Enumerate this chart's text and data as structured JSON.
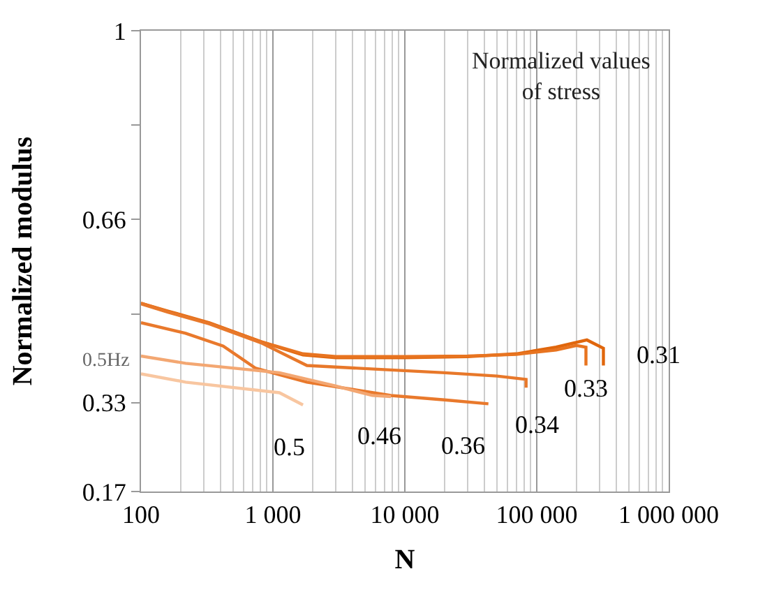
{
  "chart_data": {
    "type": "line",
    "xlabel": "N",
    "ylabel": "Normalized modulus",
    "log": "x",
    "grid": "x",
    "legend": false,
    "marker": "none",
    "line_style": "solid",
    "xlim": [
      100,
      1000000
    ],
    "ylim": [
      0.17,
      1
    ],
    "xticks": [
      {
        "value": 100,
        "label": "100"
      },
      {
        "value": 1000,
        "label": "1 000"
      },
      {
        "value": 10000,
        "label": "10 000"
      },
      {
        "value": 100000,
        "label": "100 000"
      },
      {
        "value": 1000000,
        "label": "1 000 000"
      }
    ],
    "yticks": [
      0.17,
      0.33,
      {
        "value": 0.49,
        "label": null
      },
      0.66,
      {
        "value": 0.83,
        "label": null
      },
      1
    ],
    "annotations": [
      "Normalized values\nof stress",
      {
        "text": "0.5Hz",
        "x": 100,
        "y": 0.404
      }
    ],
    "series": [
      {
        "name": "0.31",
        "color": "#e0660c",
        "x": [
          100,
          160,
          330,
          810,
          1690,
          3000,
          10000,
          30000,
          70000,
          140000,
          240000,
          320000,
          320000
        ],
        "values": [
          0.509,
          0.495,
          0.474,
          0.44,
          0.416,
          0.411,
          0.411,
          0.413,
          0.418,
          0.43,
          0.443,
          0.428,
          0.397
        ]
      },
      {
        "name": "0.33",
        "color": "#e87420",
        "x": [
          100,
          160,
          330,
          810,
          1690,
          3000,
          10000,
          30000,
          70000,
          140000,
          200000,
          236000,
          236000
        ],
        "values": [
          0.509,
          0.494,
          0.473,
          0.44,
          0.418,
          0.413,
          0.413,
          0.414,
          0.417,
          0.425,
          0.433,
          0.43,
          0.397
        ]
      },
      {
        "name": "0.34",
        "color": "#e8782a",
        "x": [
          100,
          160,
          330,
          810,
          1810,
          7850,
          20000,
          50000,
          83000,
          83000
        ],
        "values": [
          0.508,
          0.493,
          0.472,
          0.438,
          0.397,
          0.389,
          0.384,
          0.378,
          0.372,
          0.357
        ]
      },
      {
        "name": "0.36",
        "color": "#e9792c",
        "x": [
          100,
          218,
          420,
          740,
          1810,
          7850,
          20000,
          43000
        ],
        "values": [
          0.474,
          0.455,
          0.432,
          0.392,
          0.367,
          0.343,
          0.335,
          0.328
        ]
      },
      {
        "name": "0.46",
        "color": "#f3a772",
        "x": [
          100,
          218,
          1120,
          3000,
          5660,
          7850
        ],
        "values": [
          0.414,
          0.401,
          0.384,
          0.36,
          0.343,
          0.341
        ]
      },
      {
        "name": "0.5",
        "color": "#f8c6a0",
        "x": [
          100,
          218,
          1120,
          1690
        ],
        "values": [
          0.382,
          0.367,
          0.348,
          0.326
        ]
      }
    ]
  }
}
